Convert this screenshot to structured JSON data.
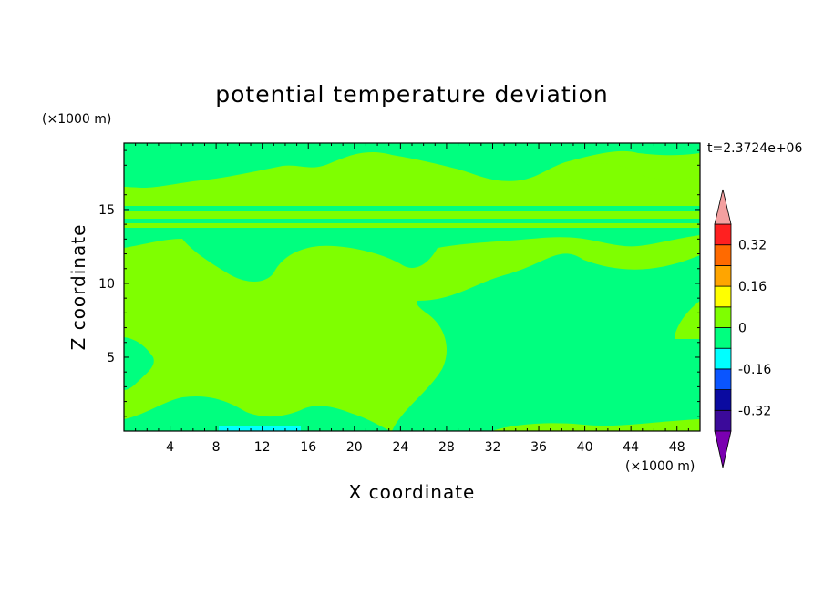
{
  "chart_data": {
    "type": "heatmap",
    "title": "potential temperature deviation",
    "xlabel": "X coordinate",
    "ylabel": "Z coordinate",
    "x_unit": "(×1000 m)",
    "y_unit": "(×1000 m)",
    "time_label": "t=2.3724e+06",
    "xlim": [
      0,
      50
    ],
    "ylim": [
      0,
      19.5
    ],
    "x_ticks": [
      4,
      8,
      12,
      16,
      20,
      24,
      28,
      32,
      36,
      40,
      44,
      48
    ],
    "y_ticks": [
      5,
      10,
      15
    ],
    "colorbar": {
      "levels": [
        -0.4,
        -0.32,
        -0.24,
        -0.16,
        -0.08,
        0,
        0.08,
        0.16,
        0.24,
        0.32,
        0.4
      ],
      "labels": [
        "0.32",
        "0.16",
        "0",
        "-0.16",
        "-0.32"
      ],
      "label_values": [
        0.32,
        0.16,
        0,
        -0.16,
        -0.32
      ],
      "colors_bottom_to_top": [
        "#3b0a9a",
        "#0a0aa0",
        "#0a55ff",
        "#00ffff",
        "#00ff7f",
        "#7fff00",
        "#ffff00",
        "#ffa500",
        "#ff6a00",
        "#ff2020"
      ],
      "extend_min_color": "#7a00b0",
      "extend_max_color": "#f4a0a0",
      "extend": "both"
    },
    "dominant_classes": [
      {
        "range": [
          -0.08,
          0
        ],
        "color": "#00ff7f"
      },
      {
        "range": [
          0,
          0.08
        ],
        "color": "#7fff00"
      }
    ],
    "grid": false,
    "legend_placement": "right"
  }
}
